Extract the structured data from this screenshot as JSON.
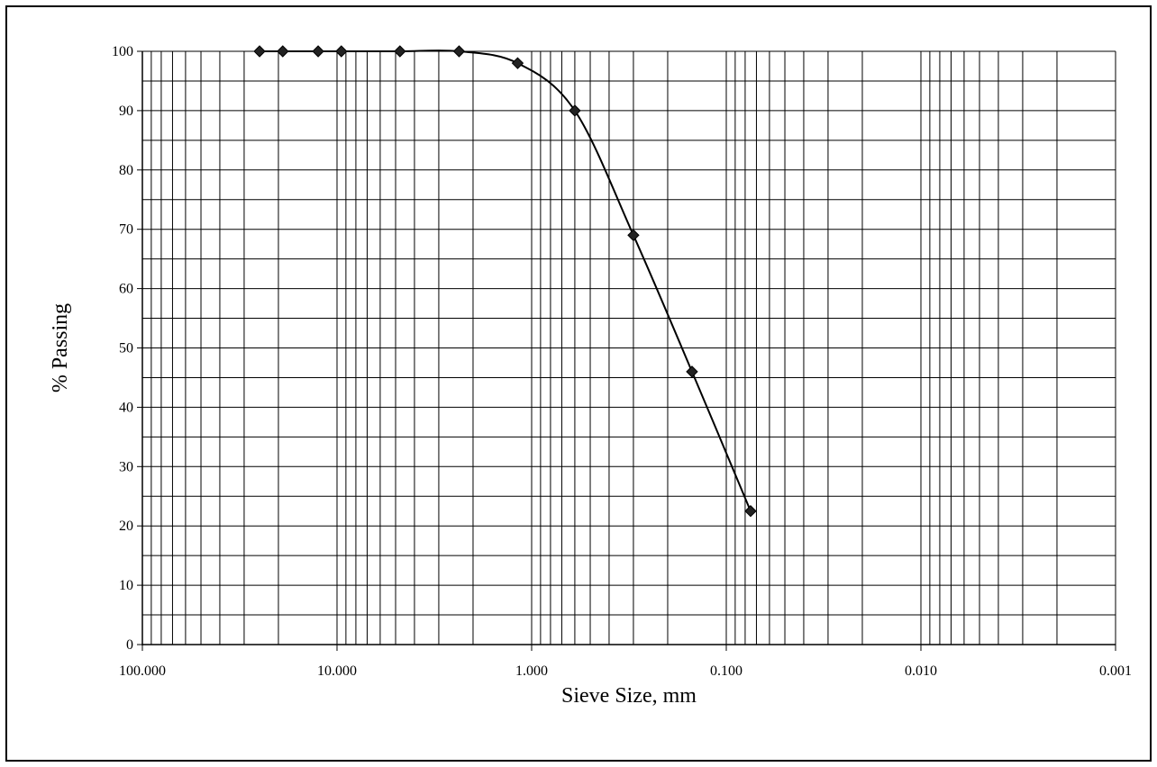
{
  "chart_data": {
    "type": "scatter",
    "title": "",
    "xlabel": "Sieve Size, mm",
    "ylabel": "% Passing",
    "x_scale": "log",
    "x_reversed": true,
    "xlim": [
      100,
      0.001
    ],
    "ylim": [
      0,
      100
    ],
    "grid": true,
    "legend": "none",
    "x_tick_labels": [
      "100.000",
      "10.000",
      "1.000",
      "0.100",
      "0.010",
      "0.001"
    ],
    "x_ticks": [
      100,
      10,
      1,
      0.1,
      0.01,
      0.001
    ],
    "y_ticks": [
      0,
      10,
      20,
      30,
      40,
      50,
      60,
      70,
      80,
      90,
      100
    ],
    "y_tick_labels": [
      "0",
      "10",
      "20",
      "30",
      "40",
      "50",
      "60",
      "70",
      "80",
      "90",
      "100"
    ],
    "series": [
      {
        "marker": "diamond",
        "line": "smooth",
        "color": "#000000",
        "x": [
          25,
          19,
          12.5,
          9.5,
          4.75,
          2.36,
          1.18,
          0.6,
          0.3,
          0.15,
          0.075
        ],
        "y": [
          100,
          100,
          100,
          100,
          100,
          100,
          98,
          90,
          69,
          46,
          22.5
        ]
      }
    ]
  }
}
